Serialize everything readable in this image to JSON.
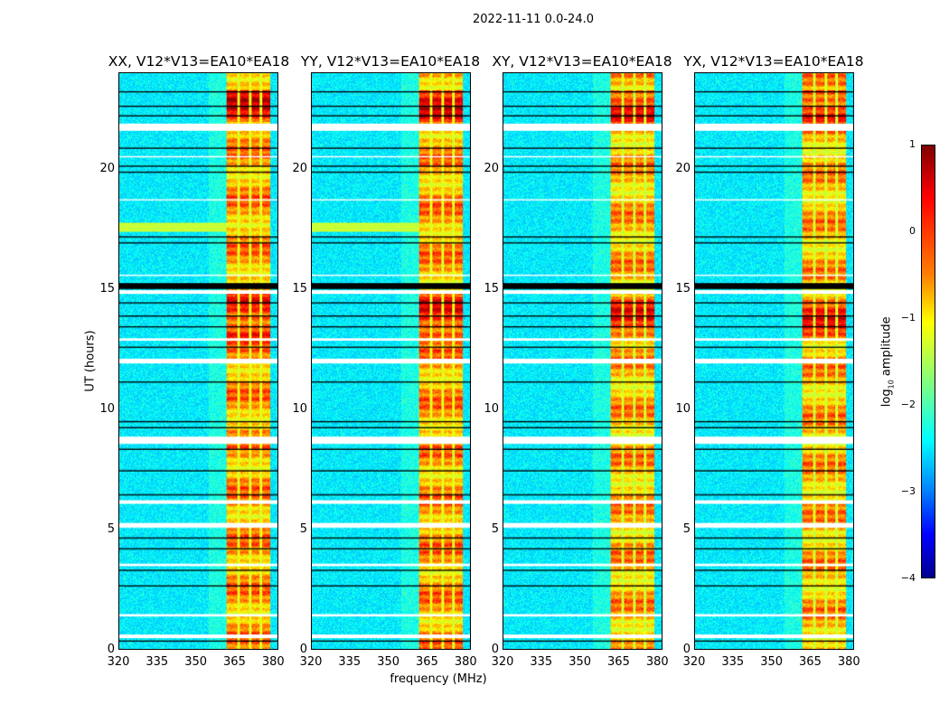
{
  "suptitle": "2022-11-11 0.0-24.0",
  "chart_data": {
    "type": "heatmap",
    "title": "2022-11-11 0.0-24.0",
    "xlabel": "frequency (MHz)",
    "ylabel": "UT (hours)",
    "xlim": [
      320,
      382
    ],
    "ylim": [
      0,
      24
    ],
    "xticks": [
      "320",
      "335",
      "350",
      "365",
      "380"
    ],
    "yticks": [
      "0",
      "5",
      "10",
      "15",
      "20"
    ],
    "colorbar": {
      "label_prefix": "log",
      "label_sub": "10",
      "label_suffix": " amplitude",
      "range": [
        -4,
        1
      ],
      "ticks": [
        "1",
        "0",
        "−1",
        "−2",
        "−3",
        "−4"
      ],
      "colormap": "jet"
    },
    "band": {
      "freq_start_mhz": 362,
      "freq_end_mhz": 379,
      "subband_gaps_mhz": [
        366.5,
        371,
        375.2
      ]
    },
    "flagged_white_hours": [
      [
        21.6,
        21.9
      ],
      [
        15.55,
        15.6
      ],
      [
        14.8,
        14.95
      ],
      [
        12.85,
        12.95
      ],
      [
        11.9,
        12.1
      ],
      [
        8.55,
        8.85
      ],
      [
        6.05,
        6.2
      ],
      [
        5.05,
        5.25
      ],
      [
        3.45,
        3.55
      ],
      [
        1.35,
        1.45
      ],
      [
        0.45,
        0.6
      ],
      [
        18.7,
        18.75
      ],
      [
        20.5,
        20.55
      ]
    ],
    "flagged_black_hours": [
      [
        15.0,
        15.25
      ],
      [
        23.2,
        23.25
      ],
      [
        22.6,
        22.65
      ],
      [
        22.2,
        22.25
      ],
      [
        20.85,
        20.9
      ],
      [
        20.1,
        20.15
      ],
      [
        19.85,
        19.9
      ],
      [
        17.15,
        17.2
      ],
      [
        16.9,
        16.95
      ],
      [
        14.4,
        14.45
      ],
      [
        13.85,
        13.9
      ],
      [
        13.4,
        13.45
      ],
      [
        12.55,
        12.6
      ],
      [
        11.1,
        11.15
      ],
      [
        9.45,
        9.5
      ],
      [
        9.2,
        9.25
      ],
      [
        8.3,
        8.35
      ],
      [
        7.4,
        7.45
      ],
      [
        6.4,
        6.45
      ],
      [
        4.6,
        4.65
      ],
      [
        4.15,
        4.2
      ],
      [
        3.25,
        3.3
      ],
      [
        2.6,
        2.65
      ],
      [
        0.3,
        0.35
      ]
    ],
    "panels": [
      {
        "title": "XX, V12*V13=EA10*EA18",
        "pol": "XX"
      },
      {
        "title": "YY, V12*V13=EA10*EA18",
        "pol": "YY"
      },
      {
        "title": "XY, V12*V13=EA10*EA18",
        "pol": "XY"
      },
      {
        "title": "YX, V12*V13=EA10*EA18",
        "pol": "YX"
      }
    ]
  }
}
